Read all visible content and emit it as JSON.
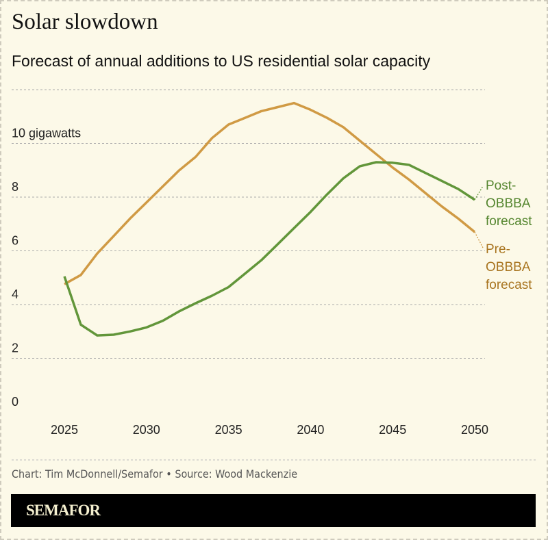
{
  "title": "Solar slowdown",
  "subtitle": "Forecast of annual additions to US residential solar capacity",
  "credit": "Chart: Tim McDonnell/Semafor • Source: Wood Mackenzie",
  "logo": "SEMAFOR",
  "chart_data": {
    "type": "line",
    "title": "Solar slowdown",
    "subtitle": "Forecast of annual additions to US residential solar capacity",
    "xlabel": "",
    "ylabel": "",
    "xlim": [
      2025,
      2050
    ],
    "ylim": [
      0,
      12
    ],
    "grid": true,
    "x_ticks": [
      "2025",
      "2030",
      "2035",
      "2040",
      "2045",
      "2050"
    ],
    "y_ticks": [
      {
        "v": 0,
        "label": "0"
      },
      {
        "v": 2,
        "label": "2"
      },
      {
        "v": 4,
        "label": "4"
      },
      {
        "v": 6,
        "label": "6"
      },
      {
        "v": 8,
        "label": "8"
      },
      {
        "v": 10,
        "label": "10 gigawatts"
      }
    ],
    "x": [
      2025,
      2026,
      2027,
      2028,
      2029,
      2030,
      2031,
      2032,
      2033,
      2034,
      2035,
      2036,
      2037,
      2038,
      2039,
      2040,
      2041,
      2042,
      2043,
      2044,
      2045,
      2046,
      2047,
      2048,
      2049,
      2050
    ],
    "series": [
      {
        "name": "Pre-OBBBA forecast",
        "label_lines": [
          "Pre-",
          "OBBBA",
          "forecast"
        ],
        "color": "#d09a44",
        "label_color": "#a8741f",
        "values": [
          4.76,
          5.1,
          5.9,
          6.55,
          7.2,
          7.8,
          8.4,
          9.0,
          9.5,
          10.2,
          10.7,
          10.95,
          11.2,
          11.35,
          11.5,
          11.25,
          10.95,
          10.6,
          10.1,
          9.6,
          9.1,
          8.65,
          8.15,
          7.65,
          7.2,
          6.7
        ]
      },
      {
        "name": "Post-OBBBA forecast",
        "label_lines": [
          "Post-",
          "OBBBA",
          "forecast"
        ],
        "color": "#62963a",
        "label_color": "#55862f",
        "values": [
          5.05,
          3.25,
          2.85,
          2.88,
          3.0,
          3.15,
          3.4,
          3.75,
          4.05,
          4.33,
          4.65,
          5.15,
          5.65,
          6.25,
          6.85,
          7.45,
          8.1,
          8.7,
          9.15,
          9.3,
          9.28,
          9.2,
          8.9,
          8.6,
          8.3,
          7.9
        ]
      }
    ]
  }
}
